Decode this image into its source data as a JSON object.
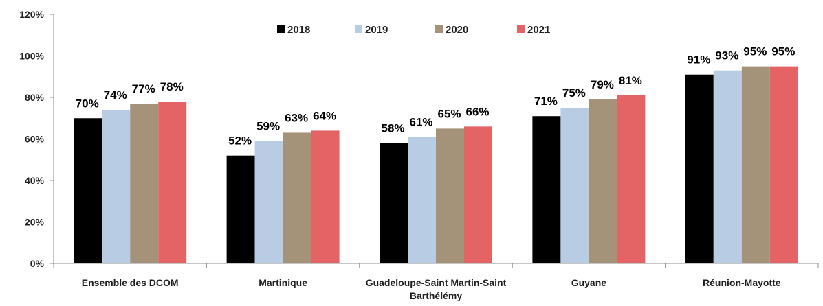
{
  "chart_data": {
    "type": "bar",
    "categories": [
      "Ensemble des DCOM",
      "Martinique",
      "Guadeloupe-Saint Martin-Saint Barthélémy",
      "Guyane",
      "Réunion-Mayotte"
    ],
    "series": [
      {
        "name": "2018",
        "color": "#000000",
        "values": [
          70,
          52,
          58,
          71,
          91
        ],
        "value_labels": [
          "70%",
          "52%",
          "58%",
          "71%",
          "91%"
        ]
      },
      {
        "name": "2019",
        "color": "#b8cce4",
        "values": [
          74,
          59,
          61,
          75,
          93
        ],
        "value_labels": [
          "74%",
          "59%",
          "61%",
          "75%",
          "93%"
        ]
      },
      {
        "name": "2020",
        "color": "#a59379",
        "values": [
          77,
          63,
          65,
          79,
          95
        ],
        "value_labels": [
          "77%",
          "63%",
          "65%",
          "79%",
          "95%"
        ]
      },
      {
        "name": "2021",
        "color": "#e46466",
        "values": [
          78,
          64,
          66,
          81,
          95
        ],
        "value_labels": [
          "78%",
          "64%",
          "66%",
          "81%",
          "95%"
        ]
      }
    ],
    "ylim": [
      0,
      120
    ],
    "yticks": [
      {
        "value": 0,
        "label": "0%"
      },
      {
        "value": 20,
        "label": "20%"
      },
      {
        "value": 40,
        "label": "40%"
      },
      {
        "value": 60,
        "label": "60%"
      },
      {
        "value": 80,
        "label": "80%"
      },
      {
        "value": 100,
        "label": "100%"
      },
      {
        "value": 120,
        "label": "120%"
      }
    ],
    "grid": false,
    "legend": "top"
  }
}
